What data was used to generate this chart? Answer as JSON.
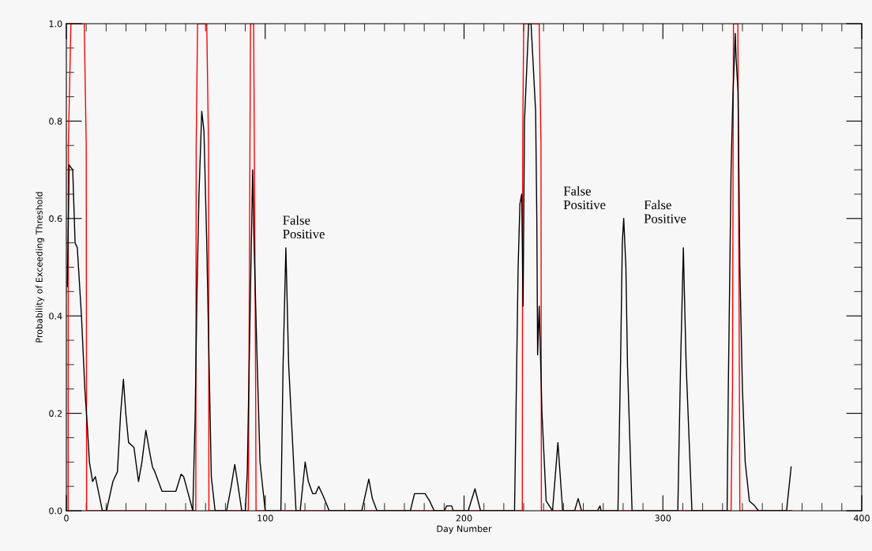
{
  "chart_data": {
    "type": "line",
    "xlabel": "Day Number",
    "ylabel": "Probability of Exceeding Threshold",
    "xlim": [
      0,
      400
    ],
    "xticks": [
      0,
      100,
      200,
      300,
      400
    ],
    "ylim": [
      0,
      1
    ],
    "yticks": [
      {
        "value": 0,
        "label": "0.0"
      },
      {
        "value": 0.2,
        "label": "0.2"
      },
      {
        "value": 0.4,
        "label": "0.4"
      },
      {
        "value": 0.6,
        "label": "0.6"
      },
      {
        "value": 0.8,
        "label": "0.8"
      },
      {
        "value": 1,
        "label": "1.0"
      }
    ],
    "grid": false,
    "legend": false,
    "marker": "none",
    "line_style": "solid",
    "series": [
      {
        "color": "#ff0000",
        "x": [
          0,
          0.9,
          1,
          2.3,
          9,
          10,
          10.2,
          65.1,
          65.3,
          66,
          70.6,
          71.5,
          71.7,
          91.5,
          91.8,
          92.6,
          94.2,
          95.2,
          95.4,
          229.3,
          229.5,
          230,
          237.8,
          238.7,
          238.9,
          334.3,
          335,
          335.5,
          337.7,
          338.5,
          338.7,
          364.8
        ],
        "values": [
          0,
          0,
          0.75,
          1,
          1,
          0.75,
          0,
          0,
          0.75,
          1,
          1,
          0.75,
          0,
          0,
          0.25,
          1,
          1,
          0.25,
          0,
          0,
          0.75,
          1,
          1,
          0.75,
          0,
          0,
          0.25,
          1,
          1,
          0.25,
          0,
          0
        ]
      },
      {
        "color": "#000000",
        "x": [
          0.5,
          1.4,
          3.2,
          4.4,
          5.5,
          7.6,
          9.3,
          10.6,
          11.6,
          13.2,
          14.6,
          18.1,
          20.2,
          23.4,
          25.7,
          27.3,
          28.7,
          29.9,
          31.3,
          34,
          36.3,
          38,
          40,
          41.9,
          43.3,
          44.5,
          48.1,
          55.1,
          57.7,
          59,
          63.6,
          64.8,
          65.7,
          66.7,
          68.1,
          69.2,
          70.6,
          71.8,
          72.9,
          74.8,
          80.6,
          82.9,
          84.7,
          86.4,
          88.2,
          90,
          91,
          92.6,
          93.7,
          94.4,
          95.8,
          97.4,
          100,
          107.9,
          109,
          110.4,
          111.8,
          115.5,
          117.6,
          120.1,
          121.7,
          123.9,
          125.3,
          126.9,
          129.2,
          132.2,
          148.6,
          152.1,
          153.9,
          156.2,
          173,
          175.1,
          180.4,
          182.7,
          185,
          190.1,
          191.3,
          193.8,
          194.5,
          202.1,
          205.5,
          208.3,
          225.4,
          226.3,
          227.2,
          228.1,
          229,
          229.7,
          230.4,
          232.5,
          233.7,
          236,
          236.6,
          237,
          237.8,
          239.2,
          241.3,
          244.5,
          247.2,
          249.6,
          255.6,
          257.4,
          259.1,
          267.1,
          268.4,
          268.9,
          277.4,
          278.7,
          279.6,
          280.3,
          281.4,
          282.2,
          284.5,
          307.5,
          308.9,
          310.3,
          310.8,
          311.7,
          314.6,
          332.3,
          332.9,
          334.3,
          335.2,
          336.4,
          336.8,
          337.8,
          338.7,
          340,
          341.4,
          343.5,
          346.2,
          348,
          362.2,
          364.5
        ],
        "values": [
          0.46,
          0.71,
          0.7,
          0.55,
          0.54,
          0.4,
          0.25,
          0.17,
          0.1,
          0.06,
          0.07,
          0,
          0,
          0.06,
          0.08,
          0.2,
          0.27,
          0.2,
          0.14,
          0.13,
          0.06,
          0.1,
          0.165,
          0.12,
          0.09,
          0.08,
          0.04,
          0.04,
          0.075,
          0.07,
          0,
          0.2,
          0.45,
          0.65,
          0.82,
          0.78,
          0.55,
          0.3,
          0.07,
          0,
          0,
          0.05,
          0.095,
          0.05,
          0,
          0,
          0.08,
          0.45,
          0.7,
          0.55,
          0.33,
          0.1,
          0,
          0,
          0.3,
          0.54,
          0.3,
          0,
          0,
          0.1,
          0.06,
          0.035,
          0.035,
          0.05,
          0.03,
          0,
          0,
          0.065,
          0.025,
          0,
          0,
          0.035,
          0.035,
          0.02,
          0,
          0,
          0.01,
          0.01,
          0,
          0,
          0.045,
          0,
          0,
          0.25,
          0.5,
          0.63,
          0.65,
          0.42,
          0.8,
          1,
          1,
          0.82,
          0.6,
          0.32,
          0.42,
          0.2,
          0.02,
          0,
          0.14,
          0,
          0,
          0.025,
          0,
          0,
          0.01,
          0,
          0,
          0.3,
          0.55,
          0.6,
          0.5,
          0.3,
          0,
          0,
          0.3,
          0.54,
          0.45,
          0.3,
          0,
          0,
          0.25,
          0.7,
          0.85,
          0.98,
          0.93,
          0.86,
          0.5,
          0.25,
          0.1,
          0.02,
          0.01,
          0,
          0,
          0.09
        ]
      }
    ],
    "annotations": [
      {
        "text": "False\nPositive",
        "x": 110.4,
        "y": 0.54
      },
      {
        "text": "False\nPositive",
        "x": 280.3,
        "y": 0.6
      },
      {
        "text": "False\nPositive",
        "x": 310.3,
        "y": 0.54
      }
    ]
  }
}
